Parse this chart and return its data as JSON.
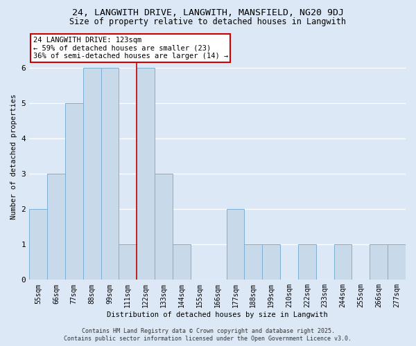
{
  "title1": "24, LANGWITH DRIVE, LANGWITH, MANSFIELD, NG20 9DJ",
  "title2": "Size of property relative to detached houses in Langwith",
  "xlabel": "Distribution of detached houses by size in Langwith",
  "ylabel": "Number of detached properties",
  "categories": [
    "55sqm",
    "66sqm",
    "77sqm",
    "88sqm",
    "99sqm",
    "111sqm",
    "122sqm",
    "133sqm",
    "144sqm",
    "155sqm",
    "166sqm",
    "177sqm",
    "188sqm",
    "199sqm",
    "210sqm",
    "222sqm",
    "233sqm",
    "244sqm",
    "255sqm",
    "266sqm",
    "277sqm"
  ],
  "values": [
    2,
    3,
    5,
    6,
    6,
    1,
    6,
    3,
    1,
    0,
    0,
    2,
    1,
    1,
    0,
    1,
    0,
    1,
    0,
    1,
    1
  ],
  "bar_color": "#c8daea",
  "bar_edgecolor": "#7aafd4",
  "highlight_index": 6,
  "vline_color": "#cc0000",
  "annotation_text": "24 LANGWITH DRIVE: 123sqm\n← 59% of detached houses are smaller (23)\n36% of semi-detached houses are larger (14) →",
  "annotation_box_color": "#ffffff",
  "annotation_box_edgecolor": "#cc0000",
  "footer1": "Contains HM Land Registry data © Crown copyright and database right 2025.",
  "footer2": "Contains public sector information licensed under the Open Government Licence v3.0.",
  "ylim": [
    0,
    7
  ],
  "yticks": [
    0,
    1,
    2,
    3,
    4,
    5,
    6
  ],
  "background_color": "#dce8f5",
  "plot_background": "#dce8f5",
  "grid_color": "#ffffff",
  "title_fontsize": 9.5,
  "subtitle_fontsize": 8.5,
  "axis_label_fontsize": 7.5,
  "tick_fontsize": 7,
  "footer_fontsize": 6
}
